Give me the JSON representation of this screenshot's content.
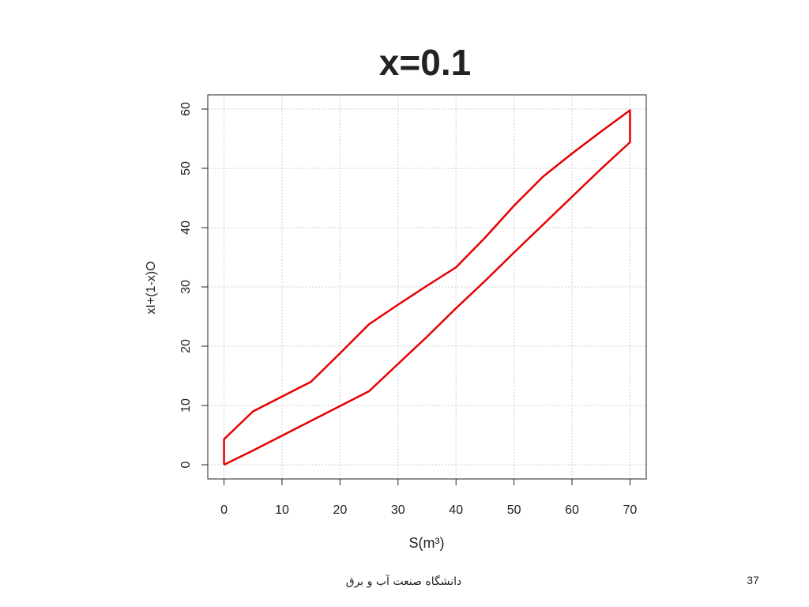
{
  "chart_data": {
    "type": "line",
    "title": "x=0.1",
    "x_label": "S(m³)",
    "y_label": "xI+(1-x)O",
    "series": [
      {
        "color": "#e60000",
        "x": [
          0,
          5,
          10,
          15,
          20,
          25,
          30,
          35,
          40,
          45,
          50,
          55,
          60,
          65,
          70,
          70,
          65,
          60,
          55,
          50,
          45,
          40,
          35,
          30,
          25,
          20,
          15,
          10,
          5,
          0,
          0
        ],
        "values": [
          0,
          2.4,
          4.9,
          7.4,
          9.9,
          12.4,
          17,
          21.6,
          26.4,
          31,
          35.8,
          40.5,
          45.2,
          49.9,
          54.4,
          59.8,
          56.2,
          52.5,
          48.6,
          43.7,
          38.3,
          33.3,
          30.2,
          27,
          23.7,
          18.8,
          14,
          11.5,
          9,
          4.3,
          0
        ]
      }
    ],
    "xlim": [
      -2.8,
      72.8
    ],
    "xticks": [
      0,
      10,
      20,
      30,
      40,
      50,
      60,
      70
    ],
    "ylim": [
      -2.4,
      62.4
    ],
    "yticks": [
      0,
      10,
      20,
      30,
      40,
      50,
      60
    ],
    "grid": true
  },
  "footer": {
    "text": "دانشگاه صنعت آب و برق",
    "page_number": "37"
  }
}
